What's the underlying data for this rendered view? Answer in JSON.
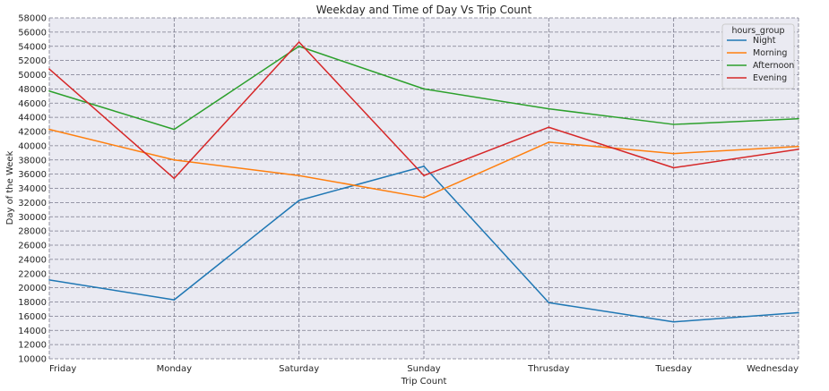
{
  "chart_data": {
    "type": "line",
    "title": "Weekday and Time of Day Vs Trip Count",
    "xlabel": "Trip Count",
    "ylabel": "Day of the Week",
    "categories": [
      "Friday",
      "Monday",
      "Saturday",
      "Sunday",
      "Thrusday",
      "Tuesday",
      "Wednesday"
    ],
    "ylim": [
      10000,
      58000
    ],
    "yticks": [
      10000,
      12000,
      14000,
      16000,
      18000,
      20000,
      22000,
      24000,
      26000,
      28000,
      30000,
      32000,
      34000,
      36000,
      38000,
      40000,
      42000,
      44000,
      46000,
      48000,
      50000,
      52000,
      54000,
      56000,
      58000
    ],
    "grid": true,
    "legend": {
      "title": "hours_group",
      "placement": "top-right"
    },
    "series": [
      {
        "name": "Night",
        "color": "#1f77b4",
        "values": [
          21100,
          18300,
          32300,
          37100,
          17900,
          15200,
          16500
        ]
      },
      {
        "name": "Morning",
        "color": "#ff7f0e",
        "values": [
          42300,
          38000,
          35800,
          32700,
          40500,
          38900,
          39900
        ]
      },
      {
        "name": "Afternoon",
        "color": "#2ca02c",
        "values": [
          47700,
          42300,
          54000,
          48000,
          45200,
          43000,
          43800
        ]
      },
      {
        "name": "Evening",
        "color": "#d62728",
        "values": [
          50800,
          35400,
          54600,
          35800,
          42600,
          36900,
          39500
        ]
      }
    ]
  }
}
